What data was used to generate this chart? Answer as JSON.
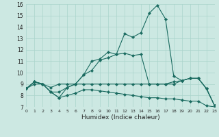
{
  "xlabel": "Humidex (Indice chaleur)",
  "xlim": [
    0,
    23
  ],
  "ylim": [
    7,
    16
  ],
  "xticks": [
    0,
    1,
    2,
    3,
    4,
    5,
    6,
    7,
    8,
    9,
    10,
    11,
    12,
    13,
    14,
    15,
    16,
    17,
    18,
    19,
    20,
    21,
    22,
    23
  ],
  "yticks": [
    7,
    8,
    9,
    10,
    11,
    12,
    13,
    14,
    15,
    16
  ],
  "bg_color": "#cce8e2",
  "line_color": "#1a6b60",
  "grid_color": "#aad4cc",
  "series": [
    {
      "x": [
        0,
        1,
        2,
        3,
        4,
        5,
        6,
        7,
        8,
        9,
        10,
        11,
        12,
        13,
        14,
        15,
        16,
        17,
        18,
        19,
        20,
        21,
        22,
        23
      ],
      "y": [
        8.6,
        9.2,
        9.0,
        8.3,
        7.8,
        8.7,
        9.0,
        9.8,
        10.2,
        11.1,
        11.3,
        11.6,
        13.4,
        13.1,
        13.5,
        15.2,
        15.9,
        14.7,
        9.7,
        9.3,
        9.5,
        9.5,
        8.6,
        7.1
      ]
    },
    {
      "x": [
        0,
        1,
        2,
        3,
        4,
        5,
        6,
        7,
        8,
        9,
        10,
        11,
        12,
        13,
        14,
        15,
        16,
        17,
        18,
        19,
        20,
        21,
        22,
        23
      ],
      "y": [
        8.6,
        9.2,
        9.0,
        8.3,
        8.3,
        8.7,
        9.0,
        9.8,
        11.0,
        11.2,
        11.8,
        11.6,
        11.7,
        11.5,
        11.6,
        9.0,
        9.0,
        9.0,
        9.2,
        9.3,
        9.5,
        9.5,
        8.6,
        7.1
      ]
    },
    {
      "x": [
        0,
        1,
        2,
        3,
        4,
        5,
        6,
        7,
        8,
        9,
        10,
        11,
        12,
        13,
        14,
        15,
        16,
        17,
        18,
        19,
        20,
        21,
        22,
        23
      ],
      "y": [
        8.6,
        9.2,
        9.0,
        8.7,
        9.0,
        9.0,
        9.0,
        9.0,
        9.0,
        9.0,
        9.0,
        9.0,
        9.0,
        9.0,
        9.0,
        9.0,
        9.0,
        9.0,
        9.0,
        9.3,
        9.5,
        9.5,
        8.6,
        7.1
      ]
    },
    {
      "x": [
        0,
        1,
        2,
        3,
        4,
        5,
        6,
        7,
        8,
        9,
        10,
        11,
        12,
        13,
        14,
        15,
        16,
        17,
        18,
        19,
        20,
        21,
        22,
        23
      ],
      "y": [
        8.6,
        9.0,
        9.0,
        8.3,
        7.8,
        8.0,
        8.2,
        8.5,
        8.5,
        8.4,
        8.3,
        8.2,
        8.1,
        8.0,
        7.9,
        7.8,
        7.8,
        7.7,
        7.7,
        7.6,
        7.5,
        7.5,
        7.1,
        7.0
      ]
    }
  ]
}
